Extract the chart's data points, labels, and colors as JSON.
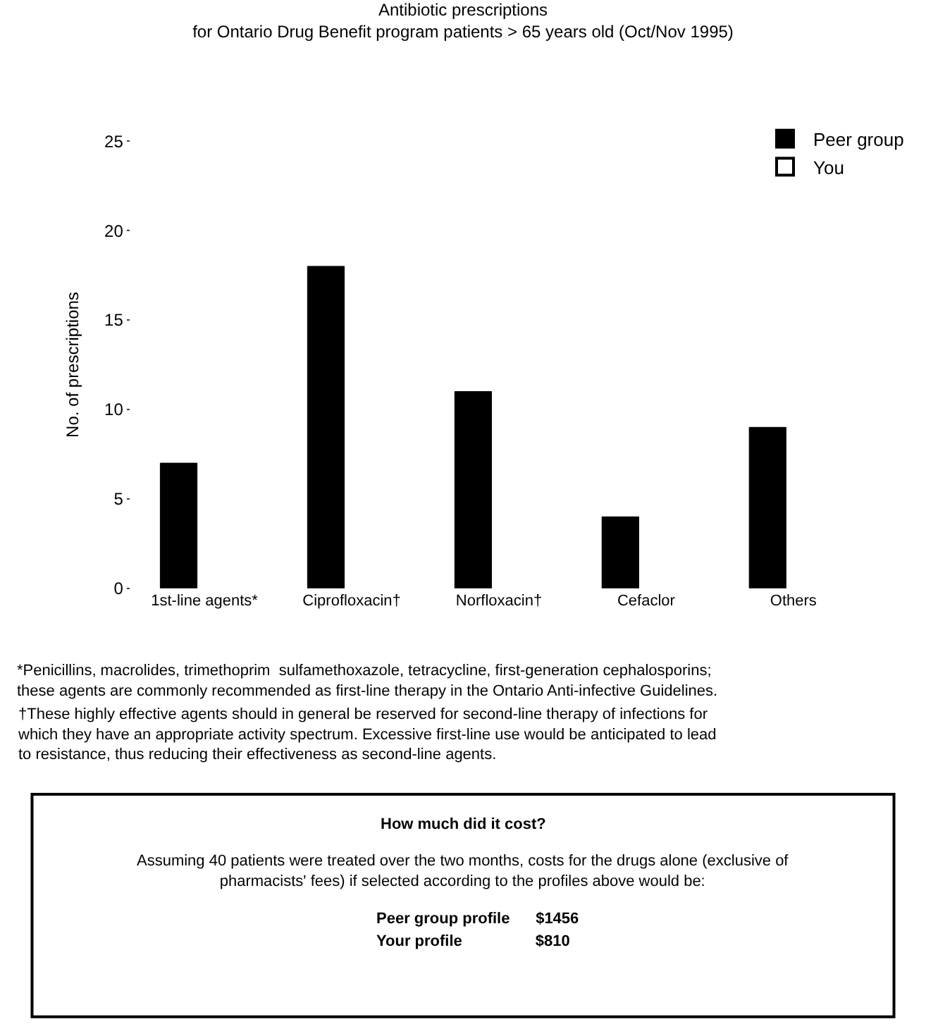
{
  "chart_data": {
    "type": "bar",
    "title": "Antibiotic prescriptions",
    "subtitle": "for Ontario Drug Benefit program patients > 65 years old (Oct/Nov 1995)",
    "ylabel": "No. of prescriptions",
    "categories": [
      "1st-line agents*",
      "Ciprofloxacin†",
      "Norfloxacin†",
      "Cefaclor",
      "Others"
    ],
    "series": [
      {
        "name": "Peer group",
        "color": "#000000",
        "values": [
          7,
          18,
          11,
          4,
          9
        ]
      },
      {
        "name": "You",
        "color": "#ffffff",
        "values": [
          null,
          null,
          null,
          null,
          null
        ]
      }
    ],
    "ylim": [
      0,
      25
    ],
    "yticks": [
      0,
      5,
      10,
      15,
      20,
      25
    ],
    "legend": "top right",
    "annotations": [
      "*Penicillins, macrolides, trimethoprim  sulfamethoxazole, tetracycline, first-generation cephalosporins; these agents are commonly recommended as first-line therapy in the Ontario Anti-infective Guidelines.",
      "†These highly effective agents should in general be reserved for second-line therapy of infections for which they have an appropriate activity spectrum. Excessive first-line use would be anticipated to lead to resistance, thus reducing their effectiveness as second-line agents.",
      "How much did it cost?",
      "Assuming 40 patients were treated over the two months, costs for the drugs alone (exclusive of pharmacists' fees) if selected according to the profiles above would be:",
      "Peer group profile      $1456",
      "Your profile                 $810"
    ]
  }
}
